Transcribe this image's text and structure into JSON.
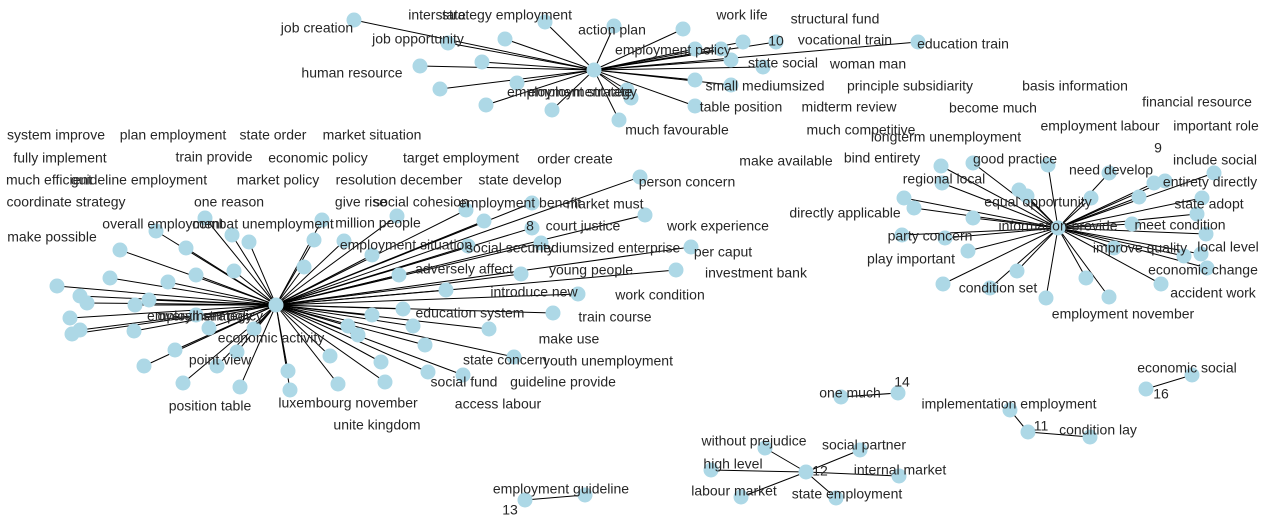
{
  "style": {
    "node_color": "#add8e6",
    "edge_color": "#000000",
    "label_color": "#262626"
  },
  "clusters": [
    {
      "hub": "employment strategy",
      "labels": [
        "employment strategy",
        "job creation",
        "interstate",
        "strategy employment",
        "action plan",
        "work life",
        "structural fund",
        "job opportunity",
        "10",
        "vocational train",
        "employment policy",
        "education train",
        "human resource",
        "state social",
        "woman man",
        "small mediumsized",
        "principle subsidiarity",
        "employment rate",
        "table position",
        "midterm review",
        "much favourable"
      ]
    },
    {
      "hub": "employment policy",
      "labels": [
        "employment policy",
        "system improve",
        "plan employment",
        "state order",
        "market situation",
        "fully implement",
        "train provide",
        "economic policy",
        "target employment",
        "order create",
        "much efficient",
        "guideline employment",
        "market policy",
        "resolution december",
        "state develop",
        "person concern",
        "coordinate strategy",
        "one reason",
        "give rise",
        "social cohesion",
        "employment benefit",
        "market must",
        "overall employment",
        "combat unemployment",
        "million people",
        "8",
        "court justice",
        "work experience",
        "make possible",
        "employment situation",
        "social security",
        "mediumsized enterprise",
        "per caput",
        "adversely affect",
        "young people",
        "investment bank",
        "introduce new",
        "work condition",
        "education system",
        "train course",
        "overall strategy",
        "economic activity",
        "make use",
        "point view",
        "state concern",
        "youth unemployment",
        "social fund",
        "guideline provide",
        "position table",
        "luxembourg november",
        "access labour",
        "unite kingdom"
      ]
    },
    {
      "hub": "information provide",
      "labels": [
        "information provide",
        "basis information",
        "financial resource",
        "become much",
        "much competitive",
        "longterm unemployment",
        "employment labour",
        "important role",
        "9",
        "make available",
        "bind entirety",
        "good practice",
        "need develop",
        "include social",
        "regional local",
        "entirety directly",
        "equal opportunity",
        "state adopt",
        "directly applicable",
        "meet condition",
        "party concern",
        "improve quality",
        "local level",
        "play important",
        "economic change",
        "condition set",
        "accident work",
        "employment november"
      ]
    },
    {
      "hub": "12",
      "labels": [
        "12",
        "without prejudice",
        "social partner",
        "high level",
        "internal market",
        "labour market",
        "state employment"
      ]
    },
    {
      "hub": "14",
      "labels": [
        "14",
        "one much"
      ]
    },
    {
      "hub": "11",
      "labels": [
        "11",
        "implementation employment",
        "condition lay"
      ]
    },
    {
      "hub": "16",
      "labels": [
        "16",
        "economic social"
      ]
    },
    {
      "hub": "13",
      "labels": [
        "13",
        "employment guideline"
      ]
    }
  ]
}
